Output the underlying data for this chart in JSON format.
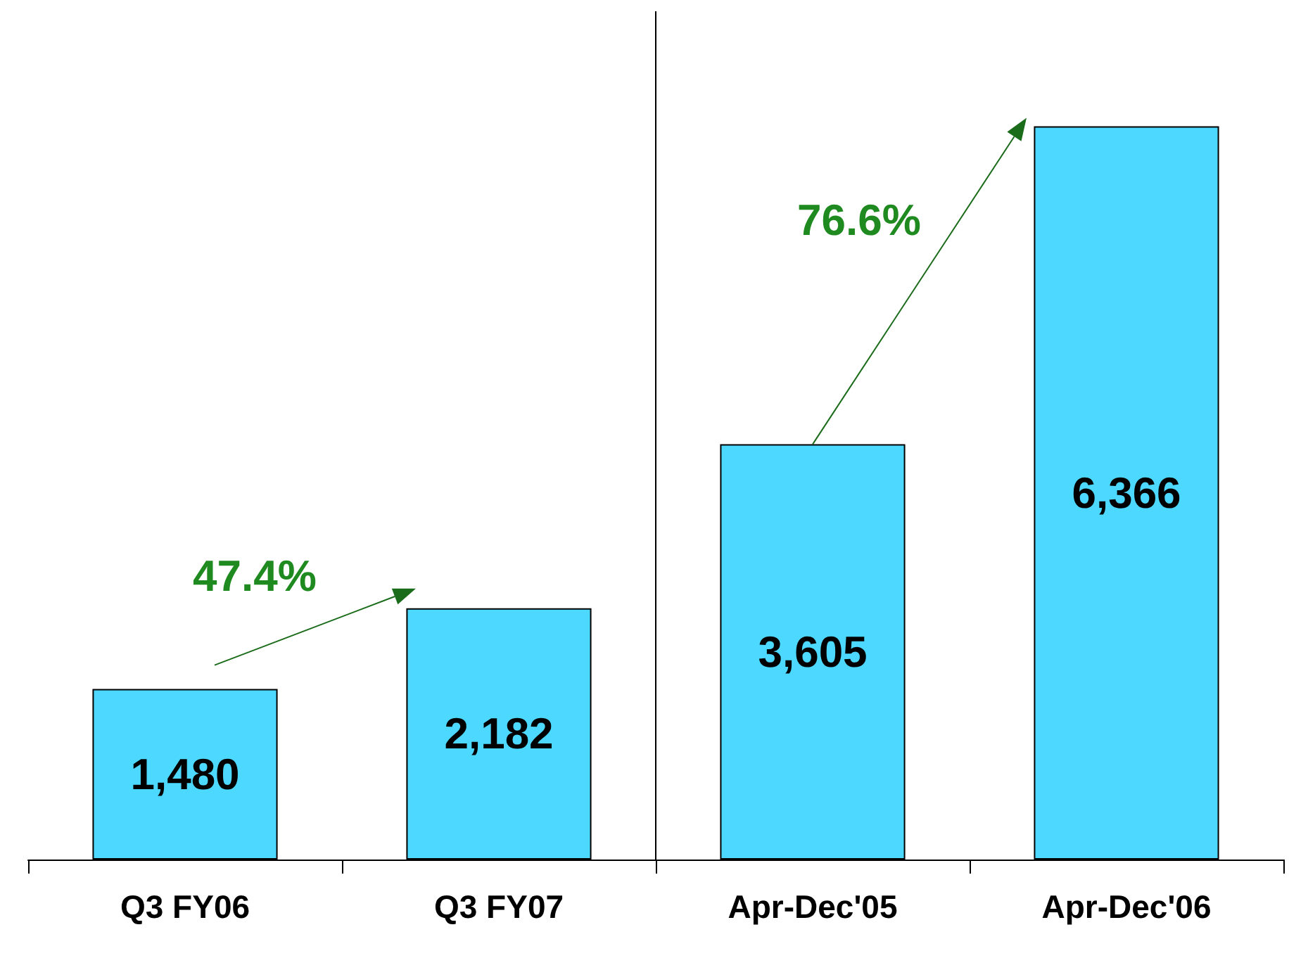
{
  "chart_data": {
    "type": "bar",
    "categories": [
      "Q3 FY06",
      "Q3 FY07",
      "Apr-Dec'05",
      "Apr-Dec'06"
    ],
    "values": [
      1480,
      2182,
      3605,
      6366
    ],
    "value_labels": [
      "1,480",
      "2,182",
      "3,605",
      "6,366"
    ],
    "color": "#4dd8ff",
    "annotations": [
      "47.4%",
      "76.6%"
    ]
  }
}
